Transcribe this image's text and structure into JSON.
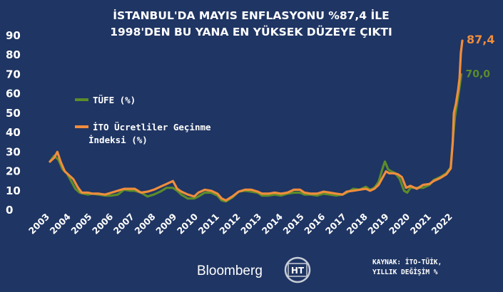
{
  "header": {
    "title_line1": "İSTANBUL'DA MAYIS ENFLASYONU %87,4 İLE",
    "title_line2": "1998'DEN BU YANA EN YÜKSEK DÜZEYE ÇIKTI"
  },
  "footer": {
    "source_line1": "KAYNAK: İTO-TÜİK,",
    "source_line2": "YILLIK DEĞİŞİM %",
    "brand": "Bloomberg",
    "logo_text": "HT"
  },
  "colors": {
    "background": "#1f3563",
    "tufe": "#5b8c2a",
    "ito": "#f08d3d"
  },
  "chart_data": {
    "type": "line",
    "title": "İSTANBUL'DA MAYIS ENFLASYONU %87,4 İLE 1998'DEN BU YANA EN YÜKSEK DÜZEYE ÇIKTI",
    "xlabel": "",
    "ylabel": "",
    "ylim": [
      0,
      90
    ],
    "xlim": [
      2003,
      2022.45
    ],
    "yticks": [
      0,
      10,
      20,
      30,
      40,
      50,
      60,
      70,
      80,
      90
    ],
    "xticks": [
      "2003",
      "2004",
      "2005",
      "2006",
      "2007",
      "2008",
      "2009",
      "2010",
      "2011",
      "2012",
      "2013",
      "2014",
      "2015",
      "2016",
      "2017",
      "2018",
      "2019",
      "2020",
      "2021",
      "2022"
    ],
    "grid": false,
    "legend_position": "left",
    "series": [
      {
        "name": "TÜFE (%)",
        "color": "#5b8c2a",
        "end_label": "70,0",
        "points": [
          [
            2003.0,
            25
          ],
          [
            2003.2,
            28
          ],
          [
            2003.4,
            26
          ],
          [
            2003.6,
            21
          ],
          [
            2003.8,
            19
          ],
          [
            2004.0,
            15
          ],
          [
            2004.2,
            11
          ],
          [
            2004.4,
            9
          ],
          [
            2004.6,
            8.5
          ],
          [
            2004.8,
            8
          ],
          [
            2005.0,
            8.5
          ],
          [
            2005.3,
            8
          ],
          [
            2005.6,
            7.5
          ],
          [
            2005.9,
            7.5
          ],
          [
            2006.2,
            8
          ],
          [
            2006.5,
            10.5
          ],
          [
            2006.8,
            10
          ],
          [
            2007.0,
            10
          ],
          [
            2007.3,
            9
          ],
          [
            2007.6,
            7
          ],
          [
            2007.9,
            8
          ],
          [
            2008.2,
            9.5
          ],
          [
            2008.5,
            11.5
          ],
          [
            2008.8,
            11.5
          ],
          [
            2009.0,
            10
          ],
          [
            2009.2,
            8
          ],
          [
            2009.5,
            6
          ],
          [
            2009.8,
            6
          ],
          [
            2010.0,
            7
          ],
          [
            2010.3,
            9
          ],
          [
            2010.6,
            9
          ],
          [
            2010.9,
            7.5
          ],
          [
            2011.1,
            5
          ],
          [
            2011.3,
            4.5
          ],
          [
            2011.6,
            6.5
          ],
          [
            2011.9,
            9.5
          ],
          [
            2012.2,
            10
          ],
          [
            2012.5,
            9.5
          ],
          [
            2012.8,
            9
          ],
          [
            2013.0,
            7.5
          ],
          [
            2013.3,
            7.5
          ],
          [
            2013.6,
            8
          ],
          [
            2013.9,
            7.5
          ],
          [
            2014.2,
            8.5
          ],
          [
            2014.5,
            9
          ],
          [
            2014.8,
            9
          ],
          [
            2015.0,
            8
          ],
          [
            2015.3,
            8
          ],
          [
            2015.6,
            7.5
          ],
          [
            2015.9,
            8.5
          ],
          [
            2016.2,
            8
          ],
          [
            2016.5,
            7.5
          ],
          [
            2016.8,
            8
          ],
          [
            2017.0,
            9
          ],
          [
            2017.3,
            11
          ],
          [
            2017.6,
            10.5
          ],
          [
            2017.9,
            12
          ],
          [
            2018.1,
            10.5
          ],
          [
            2018.3,
            11.5
          ],
          [
            2018.5,
            14.5
          ],
          [
            2018.7,
            22
          ],
          [
            2018.8,
            25
          ],
          [
            2018.95,
            21
          ],
          [
            2019.1,
            20
          ],
          [
            2019.3,
            19
          ],
          [
            2019.5,
            16
          ],
          [
            2019.7,
            10
          ],
          [
            2019.85,
            9
          ],
          [
            2020.0,
            11.5
          ],
          [
            2020.3,
            11.5
          ],
          [
            2020.6,
            11.5
          ],
          [
            2020.9,
            13
          ],
          [
            2021.1,
            15.5
          ],
          [
            2021.4,
            17
          ],
          [
            2021.7,
            19
          ],
          [
            2021.9,
            22
          ],
          [
            2022.0,
            36
          ],
          [
            2022.1,
            48
          ],
          [
            2022.2,
            55
          ],
          [
            2022.3,
            62
          ],
          [
            2022.4,
            70
          ]
        ]
      },
      {
        "name": "İTO Ücretliler Geçinme İndeksi (%)",
        "color": "#f08d3d",
        "end_label": "87,4",
        "points": [
          [
            2003.0,
            25
          ],
          [
            2003.2,
            27
          ],
          [
            2003.35,
            30
          ],
          [
            2003.5,
            25
          ],
          [
            2003.7,
            20
          ],
          [
            2003.9,
            18
          ],
          [
            2004.1,
            16
          ],
          [
            2004.3,
            12
          ],
          [
            2004.5,
            9
          ],
          [
            2004.8,
            9
          ],
          [
            2005.0,
            8.5
          ],
          [
            2005.3,
            8.5
          ],
          [
            2005.6,
            8
          ],
          [
            2005.9,
            9
          ],
          [
            2006.2,
            10
          ],
          [
            2006.5,
            11
          ],
          [
            2006.8,
            11
          ],
          [
            2007.0,
            11
          ],
          [
            2007.3,
            9
          ],
          [
            2007.6,
            9.5
          ],
          [
            2007.9,
            10.5
          ],
          [
            2008.2,
            12
          ],
          [
            2008.5,
            13.5
          ],
          [
            2008.8,
            15
          ],
          [
            2009.0,
            11
          ],
          [
            2009.2,
            9.5
          ],
          [
            2009.5,
            8
          ],
          [
            2009.8,
            7
          ],
          [
            2010.0,
            9
          ],
          [
            2010.3,
            10.5
          ],
          [
            2010.6,
            10
          ],
          [
            2010.9,
            8.5
          ],
          [
            2011.1,
            6
          ],
          [
            2011.3,
            5
          ],
          [
            2011.6,
            7
          ],
          [
            2011.9,
            9.5
          ],
          [
            2012.2,
            10.5
          ],
          [
            2012.5,
            10.5
          ],
          [
            2012.8,
            9.5
          ],
          [
            2013.0,
            8.5
          ],
          [
            2013.3,
            8.5
          ],
          [
            2013.6,
            9
          ],
          [
            2013.9,
            8.5
          ],
          [
            2014.2,
            9
          ],
          [
            2014.5,
            10.5
          ],
          [
            2014.8,
            10.5
          ],
          [
            2015.0,
            9
          ],
          [
            2015.3,
            8.5
          ],
          [
            2015.6,
            8.5
          ],
          [
            2015.9,
            9.5
          ],
          [
            2016.2,
            9
          ],
          [
            2016.5,
            8.5
          ],
          [
            2016.8,
            8
          ],
          [
            2017.0,
            9.5
          ],
          [
            2017.3,
            10
          ],
          [
            2017.6,
            10.5
          ],
          [
            2017.9,
            11
          ],
          [
            2018.1,
            10
          ],
          [
            2018.3,
            11
          ],
          [
            2018.5,
            13
          ],
          [
            2018.7,
            17
          ],
          [
            2018.85,
            20
          ],
          [
            2019.0,
            19
          ],
          [
            2019.2,
            19
          ],
          [
            2019.4,
            18.5
          ],
          [
            2019.6,
            17
          ],
          [
            2019.8,
            11.5
          ],
          [
            2020.0,
            12.5
          ],
          [
            2020.3,
            11
          ],
          [
            2020.6,
            13
          ],
          [
            2020.9,
            13.5
          ],
          [
            2021.1,
            15
          ],
          [
            2021.4,
            16.5
          ],
          [
            2021.7,
            18.5
          ],
          [
            2021.9,
            21.5
          ],
          [
            2022.0,
            35
          ],
          [
            2022.05,
            50
          ],
          [
            2022.15,
            55
          ],
          [
            2022.25,
            62
          ],
          [
            2022.32,
            68
          ],
          [
            2022.38,
            81
          ],
          [
            2022.45,
            87.4
          ]
        ]
      }
    ]
  }
}
